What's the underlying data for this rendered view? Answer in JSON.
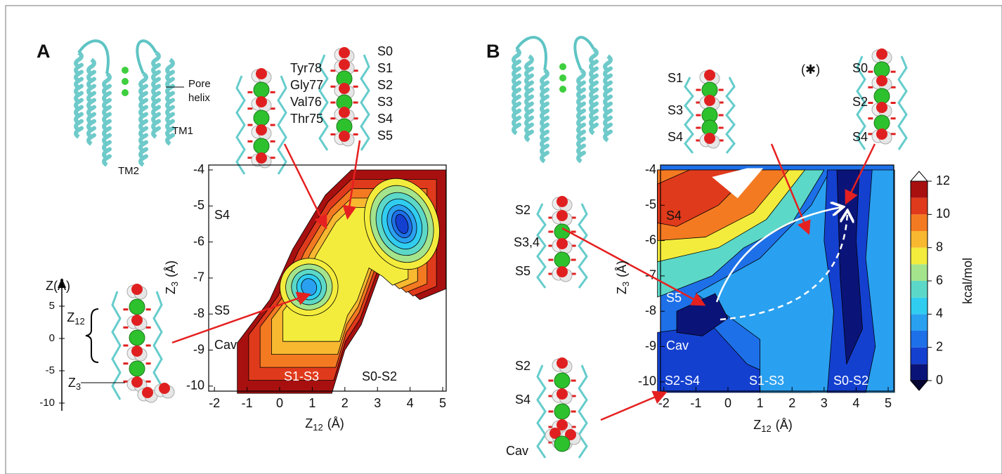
{
  "panel_a": {
    "letter": "A",
    "structure_labels": {
      "pore_helix": [
        "Pore",
        "helix"
      ],
      "tm1": "TM1",
      "tm2": "TM2"
    },
    "residues": [
      "Tyr78",
      "Gly77",
      "Val76",
      "Thr75"
    ],
    "sites": [
      "S0",
      "S1",
      "S2",
      "S3",
      "S4",
      "S5"
    ],
    "z_axis": {
      "label": "Z(Å)",
      "ticks": [
        5,
        0,
        -5,
        -10
      ],
      "z12": {
        "main": "Z",
        "sub": "12"
      },
      "z3": {
        "main": "Z",
        "sub": "3"
      }
    },
    "plot": {
      "x_label": {
        "main": "Z",
        "sub": "12",
        "unit": "(Å)"
      },
      "y_label": {
        "main": "Z",
        "sub": "3",
        "unit": "(Å)"
      },
      "xticks": [
        -2,
        -1,
        0,
        1,
        2,
        3,
        4,
        5
      ],
      "yticks": [
        -4,
        -5,
        -6,
        -7,
        -8,
        -9,
        -10
      ],
      "regions": [
        "S4",
        "S5",
        "Cav",
        "S1-S3",
        "S0-S2"
      ]
    }
  },
  "panel_b": {
    "letter": "B",
    "mark": "(✱)",
    "sites_top_left": [
      "S1",
      "S3",
      "S4"
    ],
    "sites_top_right": [
      "S0",
      "S2",
      "S4"
    ],
    "sites_mid": [
      "S2",
      "S3,4",
      "S5"
    ],
    "sites_bottom": [
      "S2",
      "S4",
      "Cav"
    ],
    "plot": {
      "x_label": {
        "main": "Z",
        "sub": "12",
        "unit": "(Å)"
      },
      "y_label": {
        "main": "Z",
        "sub": "3",
        "unit": "(Å)"
      },
      "xticks": [
        -2,
        -1,
        0,
        1,
        2,
        3,
        4,
        5
      ],
      "yticks": [
        -4,
        -5,
        -6,
        -7,
        -8,
        -9,
        -10
      ],
      "regions": [
        "S4",
        "S5",
        "Cav",
        "S2-S4",
        "S1-S3",
        "S0-S2"
      ]
    },
    "colorbar": {
      "ticks": [
        0,
        2,
        4,
        6,
        8,
        10,
        12
      ],
      "label": "kcal/mol",
      "colors": [
        "#0a1478",
        "#1440d0",
        "#1e70e8",
        "#2aa0f0",
        "#30cdf0",
        "#5cd8c8",
        "#a4e48c",
        "#f4ec3c",
        "#f8b830",
        "#f47a22",
        "#e03a1c",
        "#a81010"
      ]
    }
  }
}
